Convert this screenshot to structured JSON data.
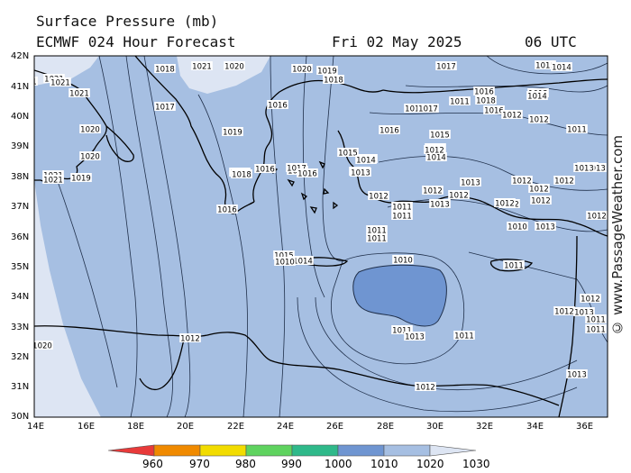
{
  "header": {
    "title_line1": "Surface Pressure (mb)",
    "title_line2": "ECMWF 024 Hour Forecast",
    "valid_date": "Fri 02 May 2025",
    "valid_time": "06 UTC"
  },
  "credit": "© www.PassageWeather.com",
  "axes": {
    "lat_labels": [
      "42N",
      "41N",
      "40N",
      "39N",
      "38N",
      "37N",
      "36N",
      "35N",
      "34N",
      "33N",
      "32N",
      "31N",
      "30N"
    ],
    "lon_labels": [
      "14E",
      "16E",
      "18E",
      "20E",
      "22E",
      "24E",
      "26E",
      "28E",
      "30E",
      "32E",
      "34E",
      "36E"
    ]
  },
  "colors": {
    "band_1000_1010": "#6f95d1",
    "band_1010_1020": "#a6bfe2",
    "band_1020_1030": "#dde5f3",
    "land_outline": "#000000",
    "isobar": "#1f2f4a"
  },
  "legend": {
    "labels": [
      "960",
      "970",
      "980",
      "990",
      "1000",
      "1010",
      "1020",
      "1030"
    ],
    "colors": [
      "#e83a3a",
      "#f08a00",
      "#f2dc00",
      "#5fd35f",
      "#2fb98a",
      "#6f95d1",
      "#a6bfe2",
      "#dde5f3"
    ]
  },
  "isobar_labels": [
    "1018",
    "1021",
    "1020",
    "1020",
    "1019",
    "1018",
    "1017",
    "1015",
    "1014",
    "1021",
    "1021",
    "1021",
    "1017",
    "1016",
    "1020",
    "1019",
    "1016",
    "1010",
    "1017",
    "1015",
    "1016",
    "1016",
    "1016",
    "1014",
    "1013",
    "1013",
    "1012",
    "1012",
    "1011",
    "1014",
    "1013",
    "1013",
    "1012",
    "1011",
    "1012",
    "1013",
    "1012",
    "1013",
    "1012",
    "1012",
    "1012",
    "1016",
    "1018",
    "1016",
    "1017",
    "1016",
    "1015",
    "1014",
    "1013",
    "1012",
    "1012",
    "1012",
    "1011",
    "1011",
    "1011",
    "1011",
    "1012",
    "1020",
    "1021",
    "1019",
    "1021",
    "1018",
    "1016",
    "1015",
    "1014",
    "1010",
    "1011",
    "1013",
    "1013",
    "1012",
    "1011",
    "1011",
    "1012",
    "1010",
    "1010",
    "1011",
    "1012",
    "1013",
    "1013",
    "1012",
    "1011",
    "1014",
    "1012",
    "1013",
    "1012",
    "1011",
    "1020",
    "1021"
  ]
}
